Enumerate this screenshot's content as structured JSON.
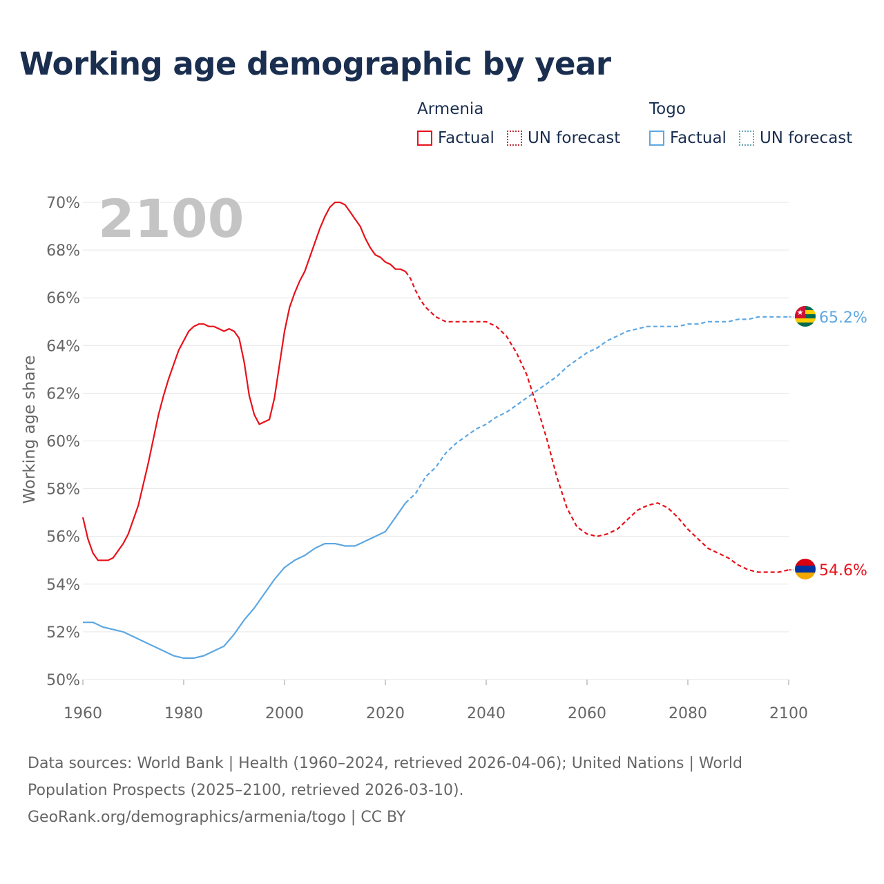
{
  "title": "Working age demographic by year",
  "legend": [
    {
      "country": "Armenia",
      "factual_label": "Factual",
      "forecast_label": "UN forecast",
      "color": "#e8111a",
      "forecast_border": "#c0303a"
    },
    {
      "country": "Togo",
      "factual_label": "Factual",
      "forecast_label": "UN forecast",
      "color": "#5da7e2",
      "forecast_border": "#6aa6b2"
    }
  ],
  "footer": {
    "line1": "Data sources: World Bank | Health (1960–2024, retrieved 2026-04-06); United Nations | World",
    "line2": "Population Prospects (2025–2100, retrieved 2026-03-10).",
    "line3": "GeoRank.org/demographics/armenia/togo | CC BY"
  },
  "colors": {
    "title": "#1a2e4f",
    "grid": "#e6e6e6",
    "axis_text": "#666666",
    "year_watermark": "#c4c4c4"
  },
  "chart_data": {
    "type": "line",
    "title": "Working age demographic by year",
    "year_label": "2100",
    "xlabel": "",
    "ylabel": "Working age share",
    "xlim": [
      1960,
      2100
    ],
    "ylim": [
      50,
      70
    ],
    "x_ticks": [
      "1960",
      "1980",
      "2000",
      "2020",
      "2040",
      "2060",
      "2080",
      "2100"
    ],
    "y_ticks": [
      "50%",
      "52%",
      "54%",
      "56%",
      "58%",
      "60%",
      "62%",
      "64%",
      "66%",
      "68%",
      "70%"
    ],
    "factual_end_year": 2024,
    "series": [
      {
        "name": "Armenia",
        "color": "#e8111a",
        "end_label": "54.6%",
        "points": [
          [
            1960,
            56.8
          ],
          [
            1961,
            55.9
          ],
          [
            1962,
            55.3
          ],
          [
            1963,
            55.0
          ],
          [
            1964,
            55.0
          ],
          [
            1965,
            55.0
          ],
          [
            1966,
            55.1
          ],
          [
            1967,
            55.4
          ],
          [
            1968,
            55.7
          ],
          [
            1969,
            56.1
          ],
          [
            1970,
            56.7
          ],
          [
            1971,
            57.3
          ],
          [
            1972,
            58.2
          ],
          [
            1973,
            59.1
          ],
          [
            1974,
            60.1
          ],
          [
            1975,
            61.1
          ],
          [
            1976,
            61.9
          ],
          [
            1977,
            62.6
          ],
          [
            1978,
            63.2
          ],
          [
            1979,
            63.8
          ],
          [
            1980,
            64.2
          ],
          [
            1981,
            64.6
          ],
          [
            1982,
            64.8
          ],
          [
            1983,
            64.9
          ],
          [
            1984,
            64.9
          ],
          [
            1985,
            64.8
          ],
          [
            1986,
            64.8
          ],
          [
            1987,
            64.7
          ],
          [
            1988,
            64.6
          ],
          [
            1989,
            64.7
          ],
          [
            1990,
            64.6
          ],
          [
            1991,
            64.3
          ],
          [
            1992,
            63.3
          ],
          [
            1993,
            61.9
          ],
          [
            1994,
            61.1
          ],
          [
            1995,
            60.7
          ],
          [
            1996,
            60.8
          ],
          [
            1997,
            60.9
          ],
          [
            1998,
            61.8
          ],
          [
            1999,
            63.2
          ],
          [
            2000,
            64.6
          ],
          [
            2001,
            65.6
          ],
          [
            2002,
            66.2
          ],
          [
            2003,
            66.7
          ],
          [
            2004,
            67.1
          ],
          [
            2005,
            67.7
          ],
          [
            2006,
            68.3
          ],
          [
            2007,
            68.9
          ],
          [
            2008,
            69.4
          ],
          [
            2009,
            69.8
          ],
          [
            2010,
            70.0
          ],
          [
            2011,
            70.0
          ],
          [
            2012,
            69.9
          ],
          [
            2013,
            69.6
          ],
          [
            2014,
            69.3
          ],
          [
            2015,
            69.0
          ],
          [
            2016,
            68.5
          ],
          [
            2017,
            68.1
          ],
          [
            2018,
            67.8
          ],
          [
            2019,
            67.7
          ],
          [
            2020,
            67.5
          ],
          [
            2021,
            67.4
          ],
          [
            2022,
            67.2
          ],
          [
            2023,
            67.2
          ],
          [
            2024,
            67.1
          ],
          [
            2025,
            66.8
          ],
          [
            2026,
            66.3
          ],
          [
            2027,
            65.9
          ],
          [
            2028,
            65.6
          ],
          [
            2029,
            65.4
          ],
          [
            2030,
            65.2
          ],
          [
            2032,
            65.0
          ],
          [
            2034,
            65.0
          ],
          [
            2036,
            65.0
          ],
          [
            2038,
            65.0
          ],
          [
            2040,
            65.0
          ],
          [
            2042,
            64.8
          ],
          [
            2044,
            64.4
          ],
          [
            2046,
            63.7
          ],
          [
            2048,
            62.8
          ],
          [
            2050,
            61.5
          ],
          [
            2052,
            60.1
          ],
          [
            2054,
            58.5
          ],
          [
            2056,
            57.2
          ],
          [
            2058,
            56.4
          ],
          [
            2060,
            56.1
          ],
          [
            2062,
            56.0
          ],
          [
            2064,
            56.1
          ],
          [
            2066,
            56.3
          ],
          [
            2068,
            56.7
          ],
          [
            2070,
            57.1
          ],
          [
            2072,
            57.3
          ],
          [
            2074,
            57.4
          ],
          [
            2076,
            57.2
          ],
          [
            2078,
            56.8
          ],
          [
            2080,
            56.3
          ],
          [
            2082,
            55.9
          ],
          [
            2084,
            55.5
          ],
          [
            2086,
            55.3
          ],
          [
            2088,
            55.1
          ],
          [
            2090,
            54.8
          ],
          [
            2092,
            54.6
          ],
          [
            2094,
            54.5
          ],
          [
            2096,
            54.5
          ],
          [
            2098,
            54.5
          ],
          [
            2100,
            54.6
          ]
        ]
      },
      {
        "name": "Togo",
        "color": "#5da7e2",
        "end_label": "65.2%",
        "points": [
          [
            1960,
            52.4
          ],
          [
            1962,
            52.4
          ],
          [
            1964,
            52.2
          ],
          [
            1966,
            52.1
          ],
          [
            1968,
            52.0
          ],
          [
            1970,
            51.8
          ],
          [
            1972,
            51.6
          ],
          [
            1974,
            51.4
          ],
          [
            1976,
            51.2
          ],
          [
            1978,
            51.0
          ],
          [
            1980,
            50.9
          ],
          [
            1982,
            50.9
          ],
          [
            1984,
            51.0
          ],
          [
            1986,
            51.2
          ],
          [
            1988,
            51.4
          ],
          [
            1990,
            51.9
          ],
          [
            1992,
            52.5
          ],
          [
            1994,
            53.0
          ],
          [
            1996,
            53.6
          ],
          [
            1998,
            54.2
          ],
          [
            2000,
            54.7
          ],
          [
            2002,
            55.0
          ],
          [
            2004,
            55.2
          ],
          [
            2006,
            55.5
          ],
          [
            2008,
            55.7
          ],
          [
            2010,
            55.7
          ],
          [
            2012,
            55.6
          ],
          [
            2014,
            55.6
          ],
          [
            2016,
            55.8
          ],
          [
            2018,
            56.0
          ],
          [
            2020,
            56.2
          ],
          [
            2022,
            56.8
          ],
          [
            2024,
            57.4
          ],
          [
            2026,
            57.8
          ],
          [
            2028,
            58.5
          ],
          [
            2030,
            58.9
          ],
          [
            2032,
            59.5
          ],
          [
            2034,
            59.9
          ],
          [
            2036,
            60.2
          ],
          [
            2038,
            60.5
          ],
          [
            2040,
            60.7
          ],
          [
            2042,
            61.0
          ],
          [
            2044,
            61.2
          ],
          [
            2046,
            61.5
          ],
          [
            2048,
            61.8
          ],
          [
            2050,
            62.1
          ],
          [
            2052,
            62.4
          ],
          [
            2054,
            62.7
          ],
          [
            2056,
            63.1
          ],
          [
            2058,
            63.4
          ],
          [
            2060,
            63.7
          ],
          [
            2062,
            63.9
          ],
          [
            2064,
            64.2
          ],
          [
            2066,
            64.4
          ],
          [
            2068,
            64.6
          ],
          [
            2070,
            64.7
          ],
          [
            2072,
            64.8
          ],
          [
            2074,
            64.8
          ],
          [
            2076,
            64.8
          ],
          [
            2078,
            64.8
          ],
          [
            2080,
            64.9
          ],
          [
            2082,
            64.9
          ],
          [
            2084,
            65.0
          ],
          [
            2086,
            65.0
          ],
          [
            2088,
            65.0
          ],
          [
            2090,
            65.1
          ],
          [
            2092,
            65.1
          ],
          [
            2094,
            65.2
          ],
          [
            2096,
            65.2
          ],
          [
            2098,
            65.2
          ],
          [
            2100,
            65.2
          ]
        ]
      }
    ]
  }
}
